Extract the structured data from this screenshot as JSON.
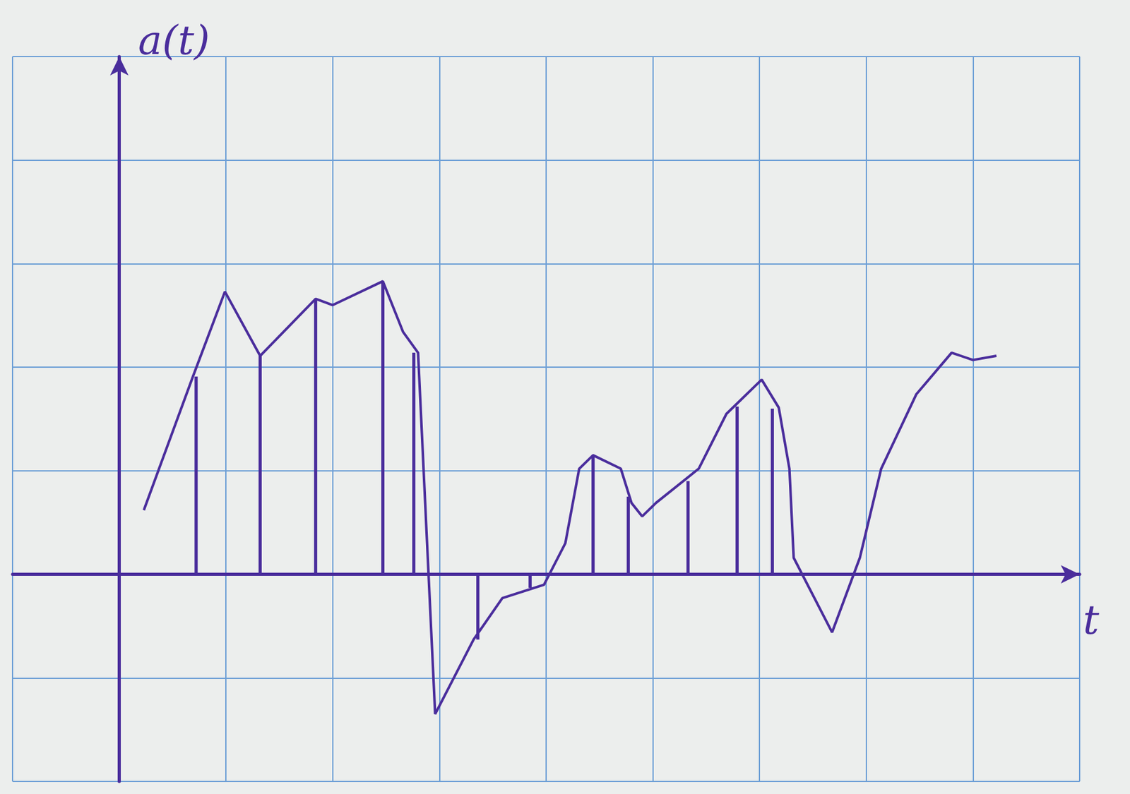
{
  "chart_data": {
    "type": "line",
    "x_label": "t",
    "y_label": "a(t)",
    "xlim": [
      -1,
      9
    ],
    "ylim": [
      -2,
      5
    ],
    "xticks": [
      -1,
      0,
      1,
      2,
      3,
      4,
      5,
      6,
      7,
      8,
      9
    ],
    "yticks": [
      -2,
      -1,
      0,
      1,
      2,
      3,
      4,
      5
    ],
    "grid": true,
    "tick_labels": false,
    "series": [
      {
        "type": "line",
        "color": "#4a2d9c",
        "x": [
          0.23,
          0.69,
          0.99,
          1.32,
          1.84,
          2.0,
          2.47,
          2.66,
          2.8,
          2.96,
          3.32,
          3.59,
          3.98,
          4.18,
          4.31,
          4.44,
          4.7,
          4.8,
          4.9,
          5.03,
          5.43,
          5.69,
          6.02,
          6.18,
          6.28,
          6.32,
          6.68,
          6.94,
          7.14,
          7.47,
          7.8,
          8.0,
          8.22
        ],
        "values": [
          0.62,
          1.91,
          2.73,
          2.11,
          2.66,
          2.6,
          2.83,
          2.34,
          2.14,
          -1.35,
          -0.63,
          -0.23,
          -0.1,
          0.3,
          1.02,
          1.15,
          1.02,
          0.69,
          0.56,
          0.69,
          1.02,
          1.55,
          1.88,
          1.61,
          1.02,
          0.16,
          -0.56,
          0.16,
          1.02,
          1.74,
          2.14,
          2.07,
          2.11
        ]
      },
      {
        "type": "bar",
        "color": "#4a2d9c",
        "x": [
          0.72,
          1.32,
          1.84,
          2.47,
          2.76,
          3.36,
          3.85,
          4.44,
          4.77,
          5.33,
          5.79,
          6.12
        ],
        "values": [
          1.91,
          2.11,
          2.66,
          2.83,
          2.14,
          -0.63,
          -0.13,
          1.15,
          0.75,
          0.9,
          1.62,
          1.6
        ]
      }
    ]
  }
}
